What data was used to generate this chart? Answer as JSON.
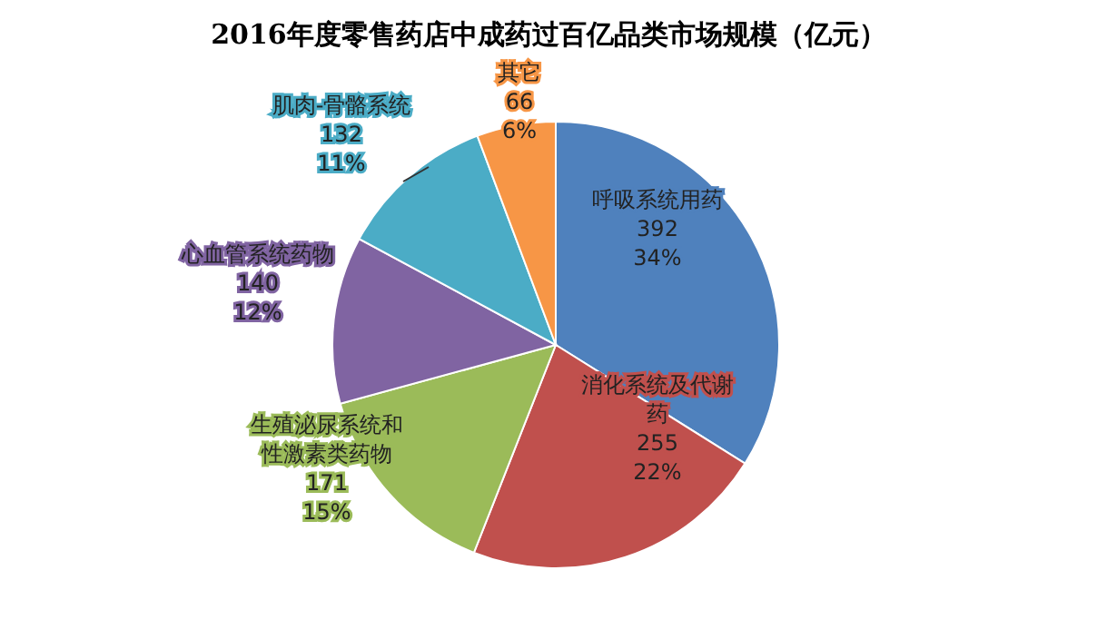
{
  "chart_data": {
    "type": "pie",
    "title": "2016年度零售药店中成药过百亿品类市场规模（亿元）",
    "categories": [
      "呼吸系统用药",
      "消化系统及代谢药",
      "生殖泌尿系统和性激素类药物",
      "心血管系统药物",
      "肌肉-骨骼系统",
      "其它"
    ],
    "values": [
      392,
      255,
      171,
      140,
      132,
      66
    ],
    "value_labels": [
      "392\n34%",
      "255\n22%",
      "171\n15%",
      "140\n12%",
      "132\n11%",
      "66\n6%"
    ],
    "colors": [
      "#4f81bd",
      "#c0504d",
      "#9bbb59",
      "#8064a2",
      "#4bacc6",
      "#f79646"
    ]
  }
}
